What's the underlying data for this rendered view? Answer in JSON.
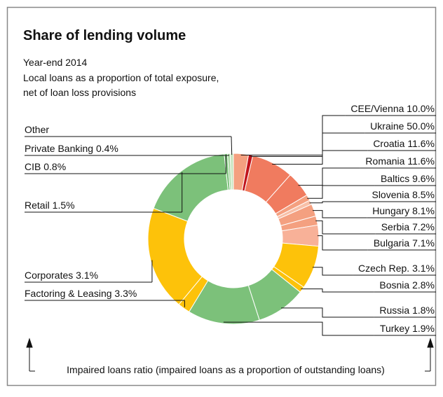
{
  "chart_data": {
    "type": "donut",
    "title": "Share of lending volume",
    "subtitle": "Year-end 2014",
    "description": [
      "Local loans as a proportion of total exposure,",
      "net of loan loss provisions"
    ],
    "annotation": "Impaired loans ratio (impaired loans as a proportion of outstanding loans)",
    "categories": [
      "CEE/Vienna 10.0%",
      "Ukraine 50.0%",
      "Croatia 11.6%",
      "Romania 11.6%",
      "Baltics 9.6%",
      "Slovenia 8.5%",
      "Hungary 8.1%",
      "Serbia 7.2%",
      "Bulgaria 7.1%",
      "Czech Rep. 3.1%",
      "Bosnia 2.8%",
      "Russia 1.8%",
      "Turkey 1.9%",
      "Factoring & Leasing 3.3%",
      "Corporates 3.1%",
      "Retail 1.5%",
      "CIB 0.8%",
      "Private Banking 0.4%",
      "Other"
    ],
    "values": [
      2.8,
      0.8,
      7.8,
      4.8,
      1.1,
      0.8,
      2.3,
      1.7,
      3.9,
      8.1,
      1.1,
      9.2,
      13.4,
      2.3,
      19.5,
      17.2,
      0.6,
      0.5,
      0.6
    ],
    "colors": [
      "#f4a080",
      "#c0141c",
      "#f07b5f",
      "#f07b5f",
      "#f4a080",
      "#f8c0a8",
      "#f4a080",
      "#f4a080",
      "#f8b198",
      "#fdc20a",
      "#fdc20a",
      "#7cc17a",
      "#7cc17a",
      "#fdc20a",
      "#fdc20a",
      "#7cc17a",
      "#7cc17a",
      "#a8d8a0",
      "#c8e6c0"
    ]
  }
}
